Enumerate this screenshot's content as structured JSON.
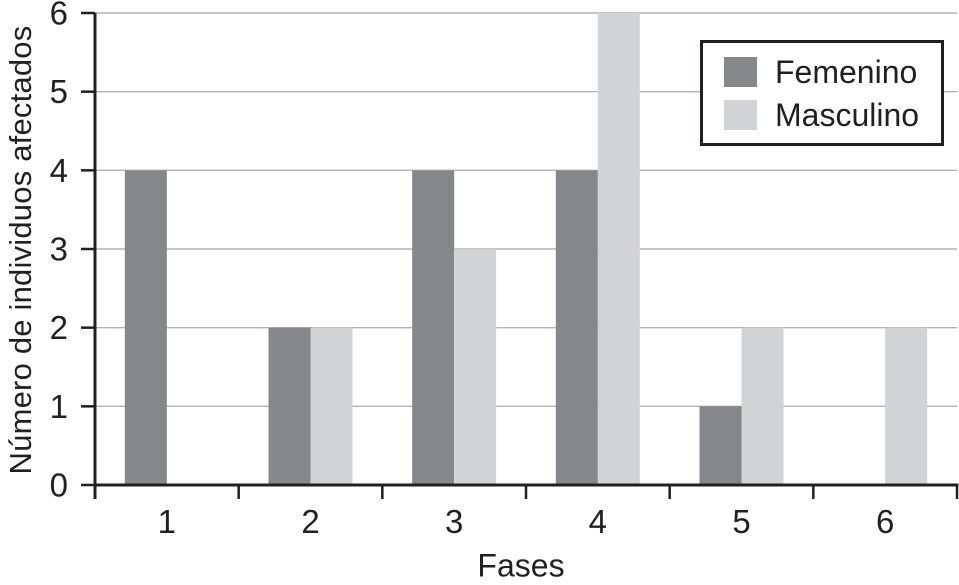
{
  "chart_data": {
    "type": "bar",
    "title": "",
    "xlabel": "Fases",
    "ylabel": "Número de individuos afectados",
    "categories": [
      "1",
      "2",
      "3",
      "4",
      "5",
      "6"
    ],
    "series": [
      {
        "name": "Femenino",
        "color": "#85878a",
        "values": [
          4,
          2,
          4,
          4,
          1,
          0
        ]
      },
      {
        "name": "Masculino",
        "color": "#d2d3d5",
        "values": [
          0,
          2,
          3,
          6,
          2,
          2
        ]
      }
    ],
    "ylim": [
      0,
      6
    ],
    "yticks": [
      0,
      1,
      2,
      3,
      4,
      5,
      6
    ],
    "grid": "horizontal",
    "legend_position": "top-right"
  },
  "style_colors": {
    "axis": "#231f20",
    "gridline": "#b0b2b4",
    "text": "#231f20",
    "background": "#ffffff"
  }
}
